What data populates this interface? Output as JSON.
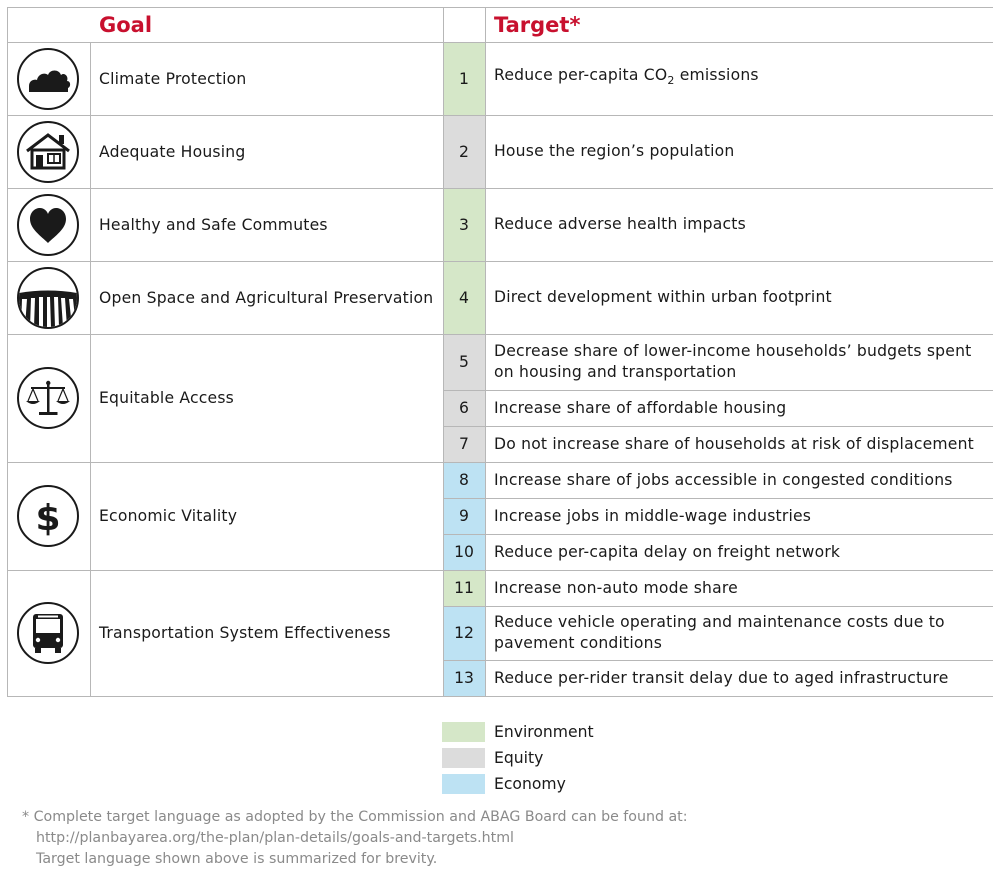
{
  "header": {
    "goal_label": "Goal",
    "target_label": "Target*"
  },
  "colors": {
    "accent": "#c8102e",
    "environment": "#d5e7c8",
    "equity": "#dcdcdc",
    "economy": "#bde2f3",
    "line": "#b7b7b7"
  },
  "goals": [
    {
      "label": "Climate Protection",
      "icon": "cloud-icon"
    },
    {
      "label": "Adequate Housing",
      "icon": "house-icon"
    },
    {
      "label": "Healthy and Safe Commutes",
      "icon": "heart-icon"
    },
    {
      "label": "Open Space and Agricultural Preservation",
      "icon": "farmland-icon"
    },
    {
      "label": "Equitable Access",
      "icon": "scales-icon"
    },
    {
      "label": "Economic Vitality",
      "icon": "dollar-icon"
    },
    {
      "label": "Transportation System Effectiveness",
      "icon": "bus-icon"
    }
  ],
  "targets": [
    {
      "num": "1",
      "category": "environment",
      "pre": "Reduce per-capita CO",
      "sub": "2",
      "post": " emissions"
    },
    {
      "num": "2",
      "category": "equity",
      "text": "House the region’s population"
    },
    {
      "num": "3",
      "category": "environment",
      "text": "Reduce adverse health impacts"
    },
    {
      "num": "4",
      "category": "environment",
      "text": "Direct development within urban footprint"
    },
    {
      "num": "5",
      "category": "equity",
      "text": "Decrease share of lower-income households’ budgets spent on housing and transportation"
    },
    {
      "num": "6",
      "category": "equity",
      "text": "Increase share of affordable housing"
    },
    {
      "num": "7",
      "category": "equity",
      "text": "Do not increase share of households at risk of displacement"
    },
    {
      "num": "8",
      "category": "economy",
      "text": "Increase share of jobs accessible in congested conditions"
    },
    {
      "num": "9",
      "category": "economy",
      "text": "Increase jobs in middle-wage industries"
    },
    {
      "num": "10",
      "category": "economy",
      "text": "Reduce per-capita delay on freight network"
    },
    {
      "num": "11",
      "category": "environment",
      "text": "Increase non-auto mode share"
    },
    {
      "num": "12",
      "category": "economy",
      "text": "Reduce vehicle operating and maintenance costs due to pavement conditions"
    },
    {
      "num": "13",
      "category": "economy",
      "text": "Reduce per-rider transit delay due to aged infrastructure"
    }
  ],
  "legend": [
    {
      "label": "Environment",
      "category": "environment"
    },
    {
      "label": "Equity",
      "category": "equity"
    },
    {
      "label": "Economy",
      "category": "economy"
    }
  ],
  "footnote": [
    "* Complete target language as adopted by the Commission and ABAG Board can be found at:",
    "http://planbayarea.org/the-plan/plan-details/goals-and-targets.html",
    "Target language shown above is summarized for brevity."
  ]
}
